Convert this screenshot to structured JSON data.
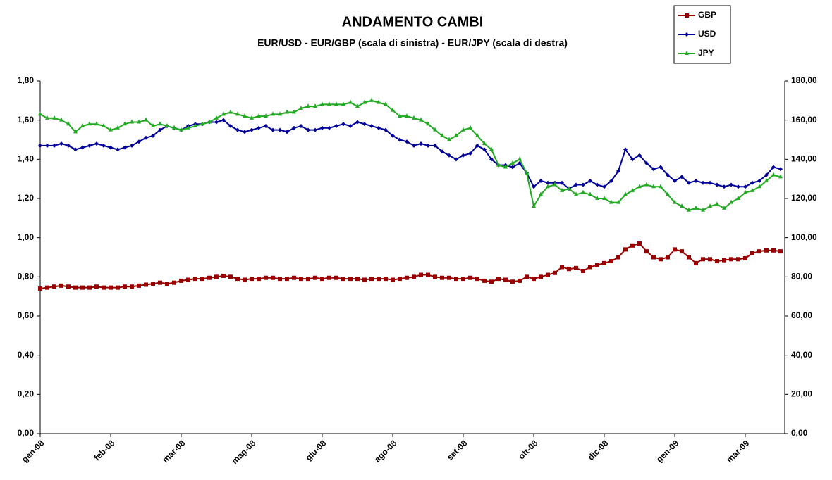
{
  "chart_data": {
    "type": "line",
    "title": "ANDAMENTO CAMBI",
    "subtitle": "EUR/USD - EUR/GBP (scala di sinistra) - EUR/JPY (scala di destra)",
    "legend": "top-right",
    "categories": [
      "gen-08",
      null,
      null,
      null,
      null,
      null,
      null,
      null,
      null,
      null,
      "feb-08",
      null,
      null,
      null,
      null,
      null,
      null,
      null,
      null,
      null,
      "mar-08",
      null,
      null,
      null,
      null,
      null,
      null,
      null,
      null,
      null,
      "mag-08",
      null,
      null,
      null,
      null,
      null,
      null,
      null,
      null,
      null,
      "giu-08",
      null,
      null,
      null,
      null,
      null,
      null,
      null,
      null,
      null,
      "ago-08",
      null,
      null,
      null,
      null,
      null,
      null,
      null,
      null,
      null,
      "set-08",
      null,
      null,
      null,
      null,
      null,
      null,
      null,
      null,
      null,
      "ott-08",
      null,
      null,
      null,
      null,
      null,
      null,
      null,
      null,
      null,
      "dic-08",
      null,
      null,
      null,
      null,
      null,
      null,
      null,
      null,
      null,
      "gen-09",
      null,
      null,
      null,
      null,
      null,
      null,
      null,
      null,
      null,
      "mar-09",
      null,
      null,
      null,
      null,
      null
    ],
    "ylim": [
      0,
      1.8
    ],
    "yticks": [
      {
        "value": 0,
        "label": "0,00"
      },
      {
        "value": 0.2,
        "label": "0,20"
      },
      {
        "value": 0.4,
        "label": "0,40"
      },
      {
        "value": 0.6,
        "label": "0,60"
      },
      {
        "value": 0.8,
        "label": "0,80"
      },
      {
        "value": 1.0,
        "label": "1,00"
      },
      {
        "value": 1.2,
        "label": "1,20"
      },
      {
        "value": 1.4,
        "label": "1,40"
      },
      {
        "value": 1.6,
        "label": "1,60"
      },
      {
        "value": 1.8,
        "label": "1,80"
      }
    ],
    "y2lim": [
      0,
      180
    ],
    "y2ticks": [
      {
        "value": 0,
        "label": "0,00"
      },
      {
        "value": 20,
        "label": "20,00"
      },
      {
        "value": 40,
        "label": "40,00"
      },
      {
        "value": 60,
        "label": "60,00"
      },
      {
        "value": 80,
        "label": "80,00"
      },
      {
        "value": 100,
        "label": "100,00"
      },
      {
        "value": 120,
        "label": "120,00"
      },
      {
        "value": 140,
        "label": "140,00"
      },
      {
        "value": 160,
        "label": "160,00"
      },
      {
        "value": 180,
        "label": "180,00"
      }
    ],
    "series": [
      {
        "name": "GBP",
        "color": "#990000",
        "marker": "square",
        "values": [
          0.74,
          0.745,
          0.75,
          0.755,
          0.75,
          0.745,
          0.745,
          0.745,
          0.75,
          0.745,
          0.745,
          0.745,
          0.75,
          0.75,
          0.755,
          0.76,
          0.765,
          0.77,
          0.765,
          0.77,
          0.78,
          0.785,
          0.79,
          0.79,
          0.795,
          0.8,
          0.805,
          0.8,
          0.79,
          0.785,
          0.79,
          0.79,
          0.795,
          0.795,
          0.79,
          0.79,
          0.795,
          0.79,
          0.79,
          0.795,
          0.79,
          0.795,
          0.795,
          0.79,
          0.79,
          0.79,
          0.785,
          0.79,
          0.79,
          0.79,
          0.785,
          0.79,
          0.795,
          0.8,
          0.81,
          0.81,
          0.8,
          0.795,
          0.795,
          0.79,
          0.79,
          0.795,
          0.79,
          0.78,
          0.775,
          0.79,
          0.785,
          0.775,
          0.78,
          0.8,
          0.79,
          0.8,
          0.81,
          0.82,
          0.85,
          0.84,
          0.845,
          0.83,
          0.85,
          0.86,
          0.87,
          0.88,
          0.9,
          0.94,
          0.96,
          0.97,
          0.93,
          0.9,
          0.89,
          0.9,
          0.94,
          0.93,
          0.9,
          0.87,
          0.89,
          0.89,
          0.88,
          0.885,
          0.89,
          0.89,
          0.895,
          0.92,
          0.93,
          0.935,
          0.935,
          0.93
        ]
      },
      {
        "name": "USD",
        "color": "#000099",
        "marker": "diamond",
        "values": [
          1.47,
          1.47,
          1.47,
          1.48,
          1.47,
          1.45,
          1.46,
          1.47,
          1.48,
          1.47,
          1.46,
          1.45,
          1.46,
          1.47,
          1.49,
          1.51,
          1.52,
          1.55,
          1.57,
          1.56,
          1.55,
          1.57,
          1.58,
          1.58,
          1.59,
          1.59,
          1.6,
          1.57,
          1.55,
          1.54,
          1.55,
          1.56,
          1.57,
          1.55,
          1.55,
          1.54,
          1.56,
          1.57,
          1.55,
          1.55,
          1.56,
          1.56,
          1.57,
          1.58,
          1.57,
          1.59,
          1.58,
          1.57,
          1.56,
          1.55,
          1.52,
          1.5,
          1.49,
          1.47,
          1.48,
          1.47,
          1.47,
          1.44,
          1.42,
          1.4,
          1.42,
          1.43,
          1.47,
          1.45,
          1.4,
          1.37,
          1.37,
          1.36,
          1.38,
          1.33,
          1.26,
          1.29,
          1.28,
          1.28,
          1.28,
          1.25,
          1.27,
          1.27,
          1.29,
          1.27,
          1.26,
          1.29,
          1.34,
          1.45,
          1.4,
          1.42,
          1.38,
          1.35,
          1.36,
          1.32,
          1.29,
          1.31,
          1.28,
          1.29,
          1.28,
          1.28,
          1.27,
          1.26,
          1.27,
          1.26,
          1.26,
          1.28,
          1.29,
          1.32,
          1.36,
          1.35
        ]
      },
      {
        "name": "JPY",
        "color": "#22aa22",
        "marker": "triangle",
        "axis": "y2",
        "values": [
          163,
          161,
          161,
          160,
          158,
          154,
          157,
          158,
          158,
          157,
          155,
          156,
          158,
          159,
          159,
          160,
          157,
          158,
          157,
          156,
          155,
          156,
          157,
          158,
          159,
          161,
          163,
          164,
          163,
          162,
          161,
          162,
          162,
          163,
          163,
          164,
          164,
          166,
          167,
          167,
          168,
          168,
          168,
          168,
          169,
          167,
          169,
          170,
          169,
          168,
          165,
          162,
          162,
          161,
          160,
          158,
          155,
          152,
          150,
          152,
          155,
          156,
          152,
          148,
          145,
          137,
          136,
          138,
          140,
          133,
          116,
          122,
          126,
          127,
          124,
          125,
          122,
          123,
          122,
          120,
          120,
          118,
          118,
          122,
          124,
          126,
          127,
          126,
          126,
          122,
          118,
          116,
          114,
          115,
          114,
          116,
          117,
          115,
          118,
          120,
          123,
          124,
          126,
          129,
          132,
          131
        ]
      }
    ]
  }
}
